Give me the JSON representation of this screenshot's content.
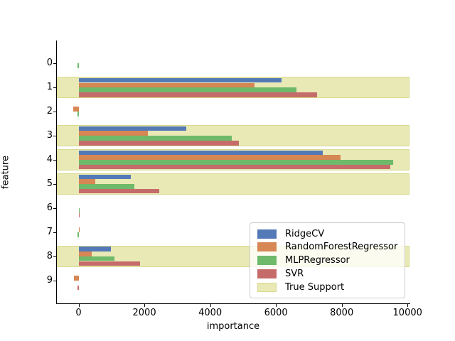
{
  "chart_data": {
    "type": "bar",
    "orientation": "horizontal",
    "title": "",
    "xlabel": "importance",
    "ylabel": "feature",
    "categories": [
      "0",
      "1",
      "2",
      "3",
      "4",
      "5",
      "6",
      "7",
      "8",
      "9"
    ],
    "series": [
      {
        "name": "RidgeCV",
        "color": "#5479b7",
        "values": [
          0,
          6170,
          0,
          3270,
          7420,
          1580,
          0,
          0,
          980,
          0
        ]
      },
      {
        "name": "RandomForestRegressor",
        "color": "#d68753",
        "values": [
          0,
          5350,
          -170,
          2100,
          7960,
          500,
          0,
          40,
          390,
          -150
        ]
      },
      {
        "name": "MLPRegressor",
        "color": "#6eb96a",
        "values": [
          -40,
          6620,
          -30,
          4650,
          9570,
          1690,
          40,
          -30,
          1100,
          0
        ]
      },
      {
        "name": "SVR",
        "color": "#c56c6a",
        "values": [
          0,
          7250,
          0,
          4870,
          9480,
          2450,
          20,
          0,
          1860,
          -20
        ]
      }
    ],
    "true_support": {
      "label": "True Support",
      "rows": [
        1,
        3,
        4,
        5,
        8
      ],
      "fill_color": "#e9e9b5",
      "edge_color": "#d9d98f"
    },
    "xlim": [
      -660,
      10060
    ],
    "xticks": [
      "0",
      "2000",
      "4000",
      "6000",
      "8000",
      "10000"
    ],
    "xtick_values": [
      0,
      2000,
      4000,
      6000,
      8000,
      10000
    ],
    "grid": false,
    "legend": {
      "position": "lower right inside plot",
      "items": [
        {
          "label": "RidgeCV"
        },
        {
          "label": "RandomForestRegressor"
        },
        {
          "label": "MLPRegressor"
        },
        {
          "label": "SVR"
        },
        {
          "label": "True Support"
        }
      ]
    }
  }
}
